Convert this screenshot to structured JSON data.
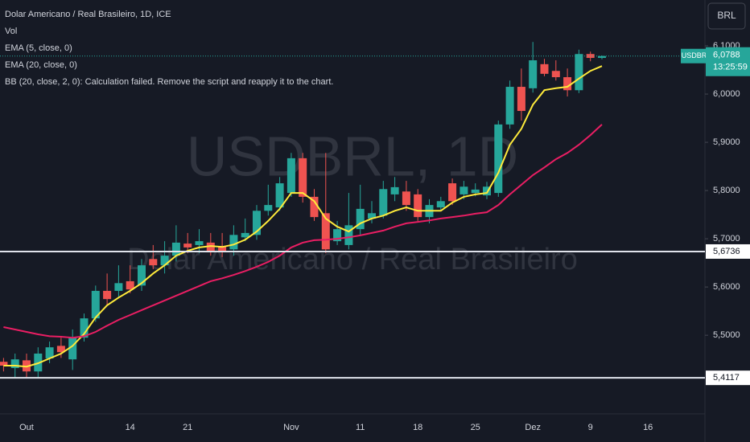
{
  "header": {
    "symbol": "Dolar Americano / Real Brasileiro, 1D, ICE",
    "indicators": [
      "Vol",
      "BB (20, close, 2, 0): Calculation failed. Remove the script and reapply it to the chart."
    ]
  },
  "currency_button": "BRL",
  "watermark": {
    "ticker": "USDBRL, 1D",
    "name": "Dolar Americano / Real Brasileiro"
  },
  "chart_data": {
    "type": "candlestick",
    "categories": [
      null,
      null,
      "Out",
      null,
      null,
      null,
      null,
      null,
      null,
      null,
      null,
      "14",
      null,
      null,
      null,
      null,
      "21",
      null,
      null,
      null,
      null,
      null,
      null,
      null,
      null,
      "Nov",
      null,
      null,
      null,
      null,
      null,
      "11",
      null,
      null,
      null,
      null,
      "18",
      null,
      null,
      null,
      null,
      "25",
      null,
      null,
      null,
      null,
      "Dez",
      null,
      null,
      null,
      null,
      "9",
      null,
      null,
      null,
      null,
      "16"
    ],
    "open": [
      5.445,
      5.432,
      5.448,
      5.425,
      5.452,
      5.478,
      5.45,
      5.495,
      5.535,
      5.592,
      5.592,
      5.612,
      5.603,
      5.658,
      5.645,
      5.665,
      5.69,
      5.687,
      5.692,
      5.685,
      5.678,
      5.703,
      5.708,
      5.758,
      5.765,
      5.795,
      5.867,
      5.787,
      5.753,
      5.695,
      5.687,
      5.72,
      5.742,
      5.748,
      5.792,
      5.798,
      5.792,
      5.745,
      5.765,
      5.815,
      5.792,
      5.795,
      5.79,
      5.795,
      5.937,
      6.015,
      6.012,
      6.062,
      6.048,
      6.035,
      6.008,
      6.083,
      6.075,
      null,
      null,
      null,
      null
    ],
    "high": [
      5.453,
      5.462,
      5.462,
      5.475,
      5.487,
      5.495,
      5.512,
      5.545,
      5.603,
      5.628,
      5.645,
      5.645,
      5.658,
      5.687,
      5.695,
      5.728,
      5.712,
      5.72,
      5.712,
      5.712,
      5.728,
      5.742,
      5.77,
      5.812,
      5.828,
      5.878,
      5.878,
      5.803,
      5.878,
      5.737,
      5.795,
      5.812,
      5.778,
      5.82,
      5.828,
      5.82,
      5.803,
      5.782,
      5.787,
      5.825,
      5.82,
      5.815,
      5.818,
      5.945,
      6.028,
      6.053,
      6.108,
      6.073,
      6.07,
      6.053,
      6.092,
      6.088,
      6.08,
      null,
      null,
      null,
      null
    ],
    "low": [
      5.425,
      5.412,
      5.412,
      5.412,
      5.442,
      5.453,
      5.428,
      5.487,
      5.528,
      5.562,
      5.578,
      5.587,
      5.592,
      5.637,
      5.628,
      5.653,
      5.67,
      5.67,
      5.665,
      5.662,
      5.665,
      5.695,
      5.698,
      5.748,
      5.758,
      5.787,
      5.775,
      5.737,
      5.67,
      5.687,
      5.678,
      5.708,
      5.732,
      5.742,
      5.778,
      5.758,
      5.737,
      5.732,
      5.758,
      5.77,
      5.782,
      5.788,
      5.782,
      5.787,
      5.928,
      5.945,
      6.003,
      6.037,
      6.028,
      5.995,
      6.002,
      6.068,
      6.072,
      null,
      null,
      null,
      null
    ],
    "close": [
      5.437,
      5.45,
      5.425,
      5.462,
      5.475,
      5.465,
      5.495,
      5.535,
      5.592,
      5.575,
      5.608,
      5.595,
      5.645,
      5.645,
      5.665,
      5.692,
      5.682,
      5.695,
      5.675,
      5.675,
      5.708,
      5.712,
      5.758,
      5.77,
      5.815,
      5.867,
      5.787,
      5.745,
      5.678,
      5.72,
      5.728,
      5.762,
      5.753,
      5.803,
      5.807,
      5.77,
      5.745,
      5.77,
      5.778,
      5.778,
      5.808,
      5.802,
      5.808,
      5.937,
      6.015,
      5.965,
      6.07,
      6.042,
      6.035,
      6.008,
      6.083,
      6.075,
      6.0788,
      null,
      null,
      null,
      null
    ],
    "up_color": "#26a69a",
    "down_color": "#ef5350",
    "series": [
      {
        "name": "EMA (5, close, 0)",
        "color": "#ffeb3b",
        "values": [
          5.437,
          5.437,
          5.435,
          5.442,
          5.452,
          5.462,
          5.478,
          5.503,
          5.537,
          5.562,
          5.578,
          5.592,
          5.608,
          5.628,
          5.645,
          5.665,
          5.675,
          5.682,
          5.685,
          5.683,
          5.688,
          5.698,
          5.715,
          5.737,
          5.762,
          5.795,
          5.795,
          5.778,
          5.742,
          5.725,
          5.715,
          5.732,
          5.742,
          5.748,
          5.758,
          5.765,
          5.758,
          5.758,
          5.758,
          5.775,
          5.787,
          5.792,
          5.795,
          5.837,
          5.895,
          5.928,
          5.978,
          6.008,
          6.012,
          6.015,
          6.032,
          6.048,
          6.058,
          null,
          null,
          null,
          null
        ]
      },
      {
        "name": "EMA (20, close, 0)",
        "color": "#e91e63",
        "values": [
          5.517,
          5.512,
          5.507,
          5.502,
          5.498,
          5.497,
          5.495,
          5.498,
          5.507,
          5.52,
          5.532,
          5.542,
          5.552,
          5.562,
          5.572,
          5.582,
          5.592,
          5.602,
          5.612,
          5.618,
          5.625,
          5.633,
          5.642,
          5.652,
          5.665,
          5.682,
          5.692,
          5.697,
          5.698,
          5.7,
          5.703,
          5.707,
          5.712,
          5.717,
          5.725,
          5.732,
          5.735,
          5.738,
          5.742,
          5.745,
          5.748,
          5.752,
          5.755,
          5.77,
          5.792,
          5.812,
          5.832,
          5.848,
          5.865,
          5.878,
          5.895,
          5.915,
          5.937,
          null,
          null,
          null,
          null
        ]
      }
    ],
    "ylim": [
      5.337,
      6.195
    ],
    "yticks": [
      {
        "value": 5.5,
        "label": "5,5000"
      },
      {
        "value": 5.6,
        "label": "5,6000"
      },
      {
        "value": 5.7,
        "label": "5,7000"
      },
      {
        "value": 5.8,
        "label": "5,8000"
      },
      {
        "value": 5.9,
        "label": "5,9000"
      },
      {
        "value": 6.0,
        "label": "6,0000"
      },
      {
        "value": 6.1,
        "label": "6,1000"
      }
    ],
    "hlines": [
      {
        "value": 5.6736,
        "label": "5,6736"
      },
      {
        "value": 5.4117,
        "label": "5,4117"
      }
    ],
    "last_price": {
      "symbol": "USDBRL",
      "value": 6.0788,
      "label": "6,0788",
      "countdown": "13:25:59"
    }
  }
}
